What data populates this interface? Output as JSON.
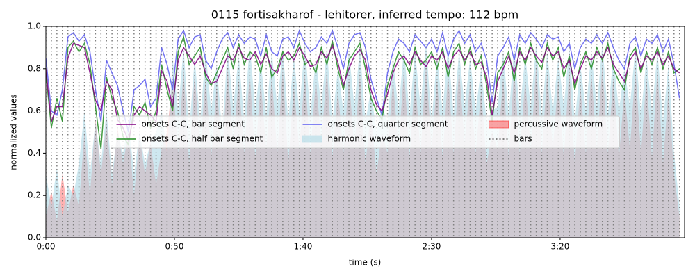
{
  "chart_data": {
    "type": "line",
    "title": "0115 fortisakharof - lehitorer, inferred tempo: 112 bpm",
    "xlabel": "time (s)",
    "ylabel": "normalized values",
    "xlim": [
      0,
      248.4
    ],
    "ylim": [
      0,
      1
    ],
    "xticks": [
      {
        "value": 0,
        "label": "0:00"
      },
      {
        "value": 50,
        "label": "0:50"
      },
      {
        "value": 100,
        "label": "1:40"
      },
      {
        "value": 150,
        "label": "2:30"
      },
      {
        "value": 200,
        "label": "3:20"
      }
    ],
    "yticks": [
      {
        "value": 0,
        "label": "0.0"
      },
      {
        "value": 0.2,
        "label": "0.2"
      },
      {
        "value": 0.4,
        "label": "0.4"
      },
      {
        "value": 0.6,
        "label": "0.6"
      },
      {
        "value": 0.8,
        "label": "0.8"
      },
      {
        "value": 1,
        "label": "1.0"
      }
    ],
    "legend_loc": "center",
    "x": [
      0,
      2.14,
      4.29,
      6.43,
      8.57,
      10.71,
      12.86,
      15,
      17.14,
      19.29,
      21.43,
      23.57,
      25.71,
      27.86,
      30,
      32.14,
      34.29,
      36.43,
      38.57,
      40.71,
      42.86,
      45,
      47.14,
      49.29,
      51.43,
      53.57,
      55.71,
      57.86,
      60,
      62.14,
      64.29,
      66.43,
      68.57,
      70.71,
      72.86,
      75,
      77.14,
      79.29,
      81.43,
      83.57,
      85.71,
      87.86,
      90,
      92.14,
      94.29,
      96.43,
      98.57,
      100.71,
      102.86,
      105,
      107.14,
      109.29,
      111.43,
      113.57,
      115.71,
      117.86,
      120,
      122.14,
      124.29,
      126.43,
      128.57,
      130.71,
      132.86,
      135,
      137.14,
      139.29,
      141.43,
      143.57,
      145.71,
      147.86,
      150,
      152.14,
      154.29,
      156.43,
      158.57,
      160.71,
      162.86,
      165,
      167.14,
      169.29,
      171.43,
      173.57,
      175.71,
      177.86,
      180,
      182.14,
      184.29,
      186.43,
      188.57,
      190.71,
      192.86,
      195,
      197.14,
      199.29,
      201.43,
      203.57,
      205.71,
      207.86,
      210,
      212.14,
      214.29,
      216.43,
      218.57,
      220.71,
      222.86,
      225,
      227.14,
      229.29,
      231.43,
      233.57,
      235.71,
      237.86,
      240,
      242.14,
      244.29,
      246.43
    ],
    "series": [
      {
        "name": "onsets C-C, bar segment",
        "style": "line",
        "color": "#800080",
        "values": [
          0.8,
          0.55,
          0.62,
          0.62,
          0.85,
          0.92,
          0.91,
          0.9,
          0.78,
          0.65,
          0.6,
          0.74,
          0.7,
          0.56,
          0.52,
          0.46,
          0.58,
          0.62,
          0.6,
          0.58,
          0.55,
          0.79,
          0.74,
          0.62,
          0.84,
          0.9,
          0.86,
          0.82,
          0.86,
          0.78,
          0.73,
          0.74,
          0.8,
          0.86,
          0.84,
          0.9,
          0.85,
          0.84,
          0.88,
          0.82,
          0.87,
          0.8,
          0.78,
          0.86,
          0.88,
          0.84,
          0.9,
          0.86,
          0.81,
          0.82,
          0.88,
          0.85,
          0.91,
          0.83,
          0.72,
          0.8,
          0.86,
          0.89,
          0.84,
          0.7,
          0.63,
          0.6,
          0.68,
          0.78,
          0.84,
          0.86,
          0.82,
          0.88,
          0.84,
          0.81,
          0.86,
          0.84,
          0.88,
          0.8,
          0.86,
          0.89,
          0.84,
          0.88,
          0.82,
          0.83,
          0.76,
          0.58,
          0.74,
          0.8,
          0.86,
          0.78,
          0.88,
          0.84,
          0.9,
          0.86,
          0.83,
          0.9,
          0.86,
          0.88,
          0.8,
          0.84,
          0.73,
          0.8,
          0.86,
          0.84,
          0.88,
          0.85,
          0.9,
          0.82,
          0.78,
          0.74,
          0.84,
          0.88,
          0.8,
          0.86,
          0.84,
          0.88,
          0.82,
          0.86,
          0.8,
          0.78
        ]
      },
      {
        "name": "onsets C-C, half bar segment",
        "style": "line",
        "color": "#228b22",
        "values": [
          0.78,
          0.52,
          0.66,
          0.55,
          0.9,
          0.93,
          0.88,
          0.92,
          0.82,
          0.62,
          0.42,
          0.76,
          0.66,
          0.6,
          0.48,
          0.44,
          0.62,
          0.58,
          0.64,
          0.52,
          0.6,
          0.82,
          0.7,
          0.6,
          0.88,
          0.95,
          0.82,
          0.86,
          0.9,
          0.76,
          0.72,
          0.78,
          0.84,
          0.9,
          0.8,
          0.92,
          0.82,
          0.88,
          0.86,
          0.78,
          0.9,
          0.76,
          0.8,
          0.88,
          0.84,
          0.86,
          0.92,
          0.82,
          0.84,
          0.78,
          0.9,
          0.82,
          0.93,
          0.8,
          0.7,
          0.84,
          0.88,
          0.92,
          0.8,
          0.66,
          0.6,
          0.56,
          0.72,
          0.8,
          0.88,
          0.84,
          0.78,
          0.9,
          0.82,
          0.84,
          0.88,
          0.8,
          0.9,
          0.76,
          0.88,
          0.92,
          0.82,
          0.9,
          0.8,
          0.86,
          0.72,
          0.55,
          0.78,
          0.82,
          0.88,
          0.74,
          0.9,
          0.82,
          0.92,
          0.84,
          0.8,
          0.92,
          0.84,
          0.9,
          0.76,
          0.86,
          0.7,
          0.82,
          0.88,
          0.8,
          0.9,
          0.84,
          0.92,
          0.8,
          0.74,
          0.7,
          0.86,
          0.9,
          0.78,
          0.88,
          0.82,
          0.9,
          0.8,
          0.88,
          0.78,
          0.8
        ]
      },
      {
        "name": "onsets C-C, quarter segment",
        "style": "line",
        "color": "#5c5cf0",
        "values": [
          0.85,
          0.6,
          0.58,
          0.7,
          0.95,
          0.97,
          0.93,
          0.96,
          0.88,
          0.7,
          0.55,
          0.84,
          0.78,
          0.72,
          0.6,
          0.5,
          0.7,
          0.72,
          0.75,
          0.62,
          0.66,
          0.9,
          0.82,
          0.7,
          0.94,
          0.98,
          0.9,
          0.95,
          0.96,
          0.84,
          0.8,
          0.88,
          0.94,
          0.97,
          0.9,
          0.96,
          0.92,
          0.95,
          0.94,
          0.86,
          0.96,
          0.88,
          0.86,
          0.94,
          0.95,
          0.9,
          0.98,
          0.92,
          0.88,
          0.9,
          0.95,
          0.92,
          0.98,
          0.9,
          0.8,
          0.92,
          0.96,
          0.97,
          0.9,
          0.75,
          0.66,
          0.58,
          0.78,
          0.88,
          0.94,
          0.92,
          0.88,
          0.96,
          0.93,
          0.9,
          0.94,
          0.88,
          0.97,
          0.86,
          0.94,
          0.98,
          0.92,
          0.96,
          0.88,
          0.92,
          0.84,
          0.64,
          0.86,
          0.9,
          0.95,
          0.84,
          0.96,
          0.92,
          0.97,
          0.94,
          0.9,
          0.96,
          0.94,
          0.95,
          0.88,
          0.92,
          0.8,
          0.9,
          0.94,
          0.92,
          0.96,
          0.92,
          0.97,
          0.9,
          0.84,
          0.8,
          0.92,
          0.95,
          0.86,
          0.94,
          0.92,
          0.96,
          0.88,
          0.94,
          0.82,
          0.66
        ]
      },
      {
        "name": "harmonic waveform",
        "style": "area",
        "color": "#add8e6",
        "values": [
          0.3,
          0.15,
          0.33,
          0.1,
          0.25,
          0.2,
          0.35,
          0.6,
          0.3,
          0.55,
          0.35,
          0.6,
          0.3,
          0.5,
          0.4,
          0.55,
          0.3,
          0.5,
          0.35,
          0.45,
          0.5,
          0.6,
          0.4,
          0.85,
          0.6,
          0.9,
          0.5,
          0.85,
          0.55,
          0.88,
          0.6,
          0.82,
          0.5,
          0.9,
          0.62,
          0.86,
          0.55,
          0.92,
          0.6,
          0.84,
          0.58,
          0.88,
          0.62,
          0.9,
          0.55,
          0.86,
          0.6,
          0.92,
          0.58,
          0.85,
          0.62,
          0.9,
          0.55,
          0.8,
          0.6,
          0.88,
          0.62,
          0.9,
          0.55,
          0.7,
          0.5,
          0.62,
          0.55,
          0.85,
          0.6,
          0.9,
          0.58,
          0.88,
          0.62,
          0.92,
          0.55,
          0.86,
          0.6,
          0.9,
          0.58,
          0.88,
          0.62,
          0.85,
          0.6,
          0.8,
          0.55,
          0.6,
          0.62,
          0.88,
          0.58,
          0.9,
          0.6,
          0.86,
          0.62,
          0.92,
          0.58,
          0.88,
          0.6,
          0.85,
          0.62,
          0.9,
          0.55,
          0.82,
          0.6,
          0.88,
          0.62,
          0.92,
          0.58,
          0.86,
          0.6,
          0.8,
          0.62,
          0.9,
          0.58,
          0.85,
          0.6,
          0.88,
          0.55,
          0.82,
          0.4,
          0.15
        ]
      },
      {
        "name": "percussive waveform",
        "style": "area",
        "color": "#ff0000",
        "values": [
          0.1,
          0.22,
          0.08,
          0.3,
          0.12,
          0.25,
          0.15,
          0.5,
          0.2,
          0.56,
          0.3,
          0.55,
          0.25,
          0.52,
          0.35,
          0.5,
          0.2,
          0.48,
          0.3,
          0.45,
          0.25,
          0.42,
          0.5,
          0.75,
          0.4,
          0.8,
          0.35,
          0.78,
          0.42,
          0.76,
          0.38,
          0.72,
          0.4,
          0.8,
          0.45,
          0.75,
          0.4,
          0.78,
          0.38,
          0.74,
          0.42,
          0.76,
          0.4,
          0.8,
          0.35,
          0.72,
          0.42,
          0.78,
          0.4,
          0.75,
          0.45,
          0.8,
          0.38,
          0.7,
          0.4,
          0.76,
          0.42,
          0.78,
          0.35,
          0.6,
          0.3,
          0.5,
          0.4,
          0.75,
          0.42,
          0.8,
          0.38,
          0.76,
          0.4,
          0.82,
          0.42,
          0.75,
          0.38,
          0.78,
          0.4,
          0.8,
          0.45,
          0.74,
          0.4,
          0.7,
          0.35,
          0.5,
          0.42,
          0.76,
          0.38,
          0.8,
          0.4,
          0.75,
          0.42,
          0.82,
          0.4,
          0.78,
          0.42,
          0.75,
          0.38,
          0.8,
          0.35,
          0.72,
          0.4,
          0.78,
          0.42,
          0.82,
          0.4,
          0.76,
          0.38,
          0.7,
          0.42,
          0.8,
          0.4,
          0.76,
          0.38,
          0.8,
          0.35,
          0.7,
          0.3,
          0.1
        ]
      },
      {
        "name": "bars",
        "style": "vline",
        "color": "#808080"
      }
    ]
  }
}
